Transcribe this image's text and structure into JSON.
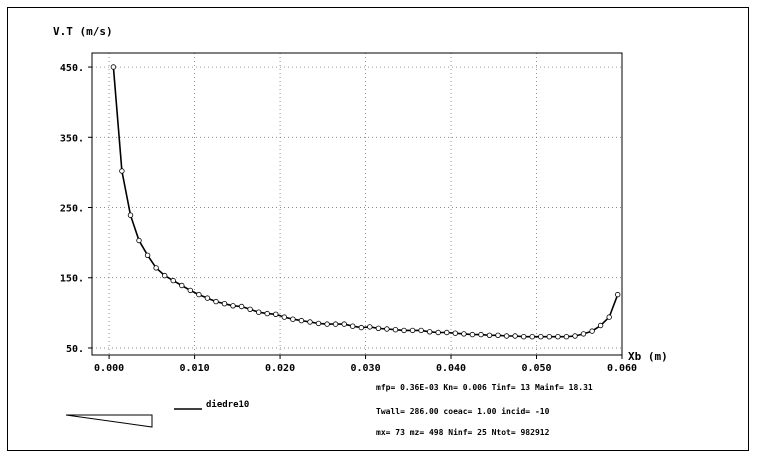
{
  "chart_data": {
    "type": "line",
    "ylabel": "V.T (m/s)",
    "xlabel": "Xb (m)",
    "xlim": [
      -0.002,
      0.06
    ],
    "ylim": [
      40,
      470
    ],
    "grid": true,
    "x_ticks": [
      0.0,
      0.01,
      0.02,
      0.03,
      0.04,
      0.05,
      0.06
    ],
    "x_tick_labels": [
      "0.000",
      "0.010",
      "0.020",
      "0.030",
      "0.040",
      "0.050",
      "0.060"
    ],
    "y_ticks": [
      50,
      150,
      250,
      350,
      450
    ],
    "y_tick_labels": [
      "50.",
      "150.",
      "250.",
      "350.",
      "450."
    ],
    "series": [
      {
        "name": "diedre10",
        "x": [
          0.0005,
          0.0015,
          0.0025,
          0.0035,
          0.0045,
          0.0055,
          0.0065,
          0.0075,
          0.0085,
          0.0095,
          0.0105,
          0.0115,
          0.0125,
          0.0135,
          0.0145,
          0.0155,
          0.0165,
          0.0175,
          0.0185,
          0.0195,
          0.0205,
          0.0215,
          0.0225,
          0.0235,
          0.0245,
          0.0255,
          0.0265,
          0.0275,
          0.0285,
          0.0295,
          0.0305,
          0.0315,
          0.0325,
          0.0335,
          0.0345,
          0.0355,
          0.0365,
          0.0375,
          0.0385,
          0.0395,
          0.0405,
          0.0415,
          0.0425,
          0.0435,
          0.0445,
          0.0455,
          0.0465,
          0.0475,
          0.0485,
          0.0495,
          0.0505,
          0.0515,
          0.0525,
          0.0535,
          0.0545,
          0.0555,
          0.0565,
          0.0575,
          0.0585,
          0.0595
        ],
        "values": [
          450,
          302,
          239,
          203,
          182,
          164,
          153,
          146,
          139,
          132,
          126,
          121,
          116,
          113,
          110,
          109,
          105,
          101,
          99,
          98,
          94,
          91,
          89,
          87,
          85,
          84,
          84,
          84,
          81,
          79,
          80,
          78,
          77,
          76,
          75,
          75,
          75,
          73,
          72,
          72,
          71,
          70,
          69,
          69,
          68,
          68,
          67,
          67,
          66,
          66,
          66,
          66,
          66,
          66,
          67,
          70,
          74,
          82,
          94,
          126
        ]
      }
    ],
    "legend": "diedre10",
    "annotations": [
      "mfp= 0.36E-03   Kn= 0.006   Tinf= 13   Mainf= 18.31",
      "Twall= 286.00   coeac= 1.00   incid= -10",
      "mx= 73   mz= 498   Ninf= 25   Ntot= 982912"
    ]
  }
}
